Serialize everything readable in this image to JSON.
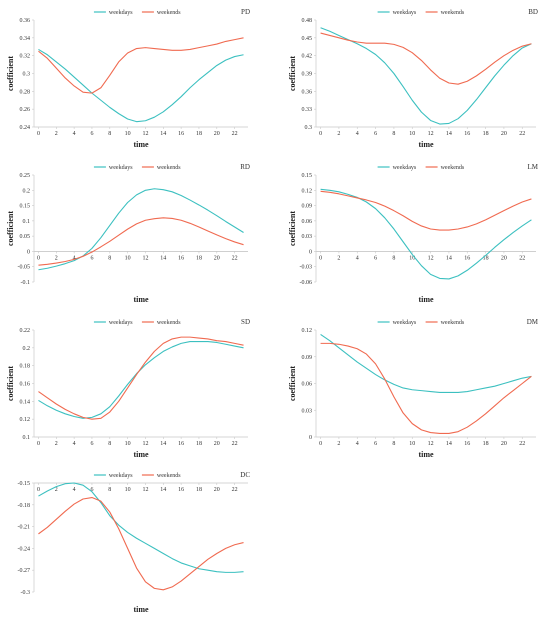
{
  "chart_data": [
    {
      "type": "line",
      "code": "PD",
      "xlabel": "time",
      "ylabel": "coefficient",
      "x": [
        0,
        1,
        2,
        3,
        4,
        5,
        6,
        7,
        8,
        9,
        10,
        11,
        12,
        13,
        14,
        15,
        16,
        17,
        18,
        19,
        20,
        21,
        22,
        23
      ],
      "x_ticks": [
        0,
        2,
        4,
        6,
        8,
        10,
        12,
        14,
        16,
        18,
        20,
        22
      ],
      "y_ticks": [
        0.24,
        0.26,
        0.28,
        0.3,
        0.32,
        0.34,
        0.36
      ],
      "ylim": [
        0.24,
        0.36
      ],
      "legend": "top",
      "series": [
        {
          "name": "weekdays",
          "color": "#3cc0c0",
          "values": [
            0.327,
            0.321,
            0.313,
            0.305,
            0.296,
            0.287,
            0.278,
            0.27,
            0.262,
            0.255,
            0.249,
            0.246,
            0.247,
            0.251,
            0.257,
            0.265,
            0.274,
            0.284,
            0.293,
            0.301,
            0.309,
            0.315,
            0.319,
            0.321
          ]
        },
        {
          "name": "weekends",
          "color": "#f06a50",
          "values": [
            0.325,
            0.317,
            0.306,
            0.295,
            0.286,
            0.279,
            0.278,
            0.284,
            0.298,
            0.313,
            0.323,
            0.328,
            0.329,
            0.328,
            0.327,
            0.326,
            0.326,
            0.327,
            0.329,
            0.331,
            0.333,
            0.336,
            0.338,
            0.34
          ]
        }
      ]
    },
    {
      "type": "line",
      "code": "BD",
      "xlabel": "time",
      "ylabel": "coefficient",
      "x": [
        0,
        1,
        2,
        3,
        4,
        5,
        6,
        7,
        8,
        9,
        10,
        11,
        12,
        13,
        14,
        15,
        16,
        17,
        18,
        19,
        20,
        21,
        22,
        23
      ],
      "x_ticks": [
        0,
        2,
        4,
        6,
        8,
        10,
        12,
        14,
        16,
        18,
        20,
        22
      ],
      "y_ticks": [
        0.3,
        0.33,
        0.36,
        0.39,
        0.42,
        0.45,
        0.48
      ],
      "ylim": [
        0.3,
        0.48
      ],
      "legend": "top",
      "series": [
        {
          "name": "weekdays",
          "color": "#3cc0c0",
          "values": [
            0.467,
            0.461,
            0.454,
            0.447,
            0.44,
            0.432,
            0.422,
            0.408,
            0.39,
            0.368,
            0.345,
            0.325,
            0.311,
            0.305,
            0.306,
            0.314,
            0.328,
            0.346,
            0.366,
            0.386,
            0.404,
            0.42,
            0.433,
            0.44
          ]
        },
        {
          "name": "weekends",
          "color": "#f06a50",
          "values": [
            0.458,
            0.454,
            0.45,
            0.446,
            0.443,
            0.441,
            0.441,
            0.441,
            0.439,
            0.434,
            0.425,
            0.412,
            0.396,
            0.382,
            0.374,
            0.372,
            0.377,
            0.386,
            0.397,
            0.409,
            0.42,
            0.429,
            0.436,
            0.44
          ]
        }
      ]
    },
    {
      "type": "line",
      "code": "RD",
      "xlabel": "time",
      "ylabel": "coefficient",
      "x": [
        0,
        1,
        2,
        3,
        4,
        5,
        6,
        7,
        8,
        9,
        10,
        11,
        12,
        13,
        14,
        15,
        16,
        17,
        18,
        19,
        20,
        21,
        22,
        23
      ],
      "x_ticks": [
        0,
        2,
        4,
        6,
        8,
        10,
        12,
        14,
        16,
        18,
        20,
        22
      ],
      "y_ticks": [
        -0.1,
        -0.05,
        0,
        0.05,
        0.1,
        0.15,
        0.2,
        0.25
      ],
      "ylim": [
        -0.1,
        0.25
      ],
      "legend": "top",
      "series": [
        {
          "name": "weekdays",
          "color": "#3cc0c0",
          "values": [
            -0.06,
            -0.055,
            -0.048,
            -0.04,
            -0.03,
            -0.015,
            0.01,
            0.045,
            0.085,
            0.125,
            0.16,
            0.185,
            0.2,
            0.205,
            0.202,
            0.195,
            0.183,
            0.168,
            0.152,
            0.135,
            0.117,
            0.098,
            0.08,
            0.062
          ]
        },
        {
          "name": "weekends",
          "color": "#f06a50",
          "values": [
            -0.045,
            -0.042,
            -0.038,
            -0.033,
            -0.026,
            -0.016,
            -0.002,
            0.015,
            0.033,
            0.053,
            0.073,
            0.09,
            0.102,
            0.107,
            0.11,
            0.108,
            0.102,
            0.092,
            0.08,
            0.067,
            0.054,
            0.042,
            0.031,
            0.022
          ]
        }
      ]
    },
    {
      "type": "line",
      "code": "LM",
      "xlabel": "time",
      "ylabel": "coefficient",
      "x": [
        0,
        1,
        2,
        3,
        4,
        5,
        6,
        7,
        8,
        9,
        10,
        11,
        12,
        13,
        14,
        15,
        16,
        17,
        18,
        19,
        20,
        21,
        22,
        23
      ],
      "x_ticks": [
        0,
        2,
        4,
        6,
        8,
        10,
        12,
        14,
        16,
        18,
        20,
        22
      ],
      "y_ticks": [
        -0.06,
        -0.03,
        0,
        0.03,
        0.06,
        0.09,
        0.12,
        0.15
      ],
      "ylim": [
        -0.06,
        0.15
      ],
      "legend": "top",
      "series": [
        {
          "name": "weekdays",
          "color": "#3cc0c0",
          "values": [
            0.122,
            0.12,
            0.117,
            0.112,
            0.106,
            0.097,
            0.084,
            0.066,
            0.044,
            0.019,
            -0.006,
            -0.028,
            -0.045,
            -0.053,
            -0.054,
            -0.048,
            -0.037,
            -0.023,
            -0.008,
            0.008,
            0.023,
            0.037,
            0.05,
            0.062
          ]
        },
        {
          "name": "weekends",
          "color": "#f06a50",
          "values": [
            0.118,
            0.116,
            0.113,
            0.109,
            0.105,
            0.101,
            0.096,
            0.089,
            0.08,
            0.07,
            0.059,
            0.05,
            0.044,
            0.042,
            0.042,
            0.044,
            0.048,
            0.054,
            0.062,
            0.071,
            0.08,
            0.089,
            0.097,
            0.103
          ]
        }
      ]
    },
    {
      "type": "line",
      "code": "SD",
      "xlabel": "time",
      "ylabel": "coefficient",
      "x": [
        0,
        1,
        2,
        3,
        4,
        5,
        6,
        7,
        8,
        9,
        10,
        11,
        12,
        13,
        14,
        15,
        16,
        17,
        18,
        19,
        20,
        21,
        22,
        23
      ],
      "x_ticks": [
        0,
        2,
        4,
        6,
        8,
        10,
        12,
        14,
        16,
        18,
        20,
        22
      ],
      "y_ticks": [
        0.1,
        0.12,
        0.14,
        0.16,
        0.18,
        0.2,
        0.22
      ],
      "ylim": [
        0.1,
        0.22
      ],
      "legend": "top",
      "series": [
        {
          "name": "weekdays",
          "color": "#3cc0c0",
          "values": [
            0.141,
            0.135,
            0.13,
            0.126,
            0.123,
            0.121,
            0.122,
            0.126,
            0.134,
            0.146,
            0.159,
            0.171,
            0.181,
            0.189,
            0.196,
            0.201,
            0.205,
            0.207,
            0.207,
            0.207,
            0.206,
            0.204,
            0.202,
            0.2
          ]
        },
        {
          "name": "weekends",
          "color": "#f06a50",
          "values": [
            0.151,
            0.144,
            0.137,
            0.131,
            0.126,
            0.122,
            0.12,
            0.121,
            0.128,
            0.14,
            0.155,
            0.17,
            0.184,
            0.196,
            0.205,
            0.21,
            0.212,
            0.212,
            0.211,
            0.21,
            0.208,
            0.207,
            0.205,
            0.203
          ]
        }
      ]
    },
    {
      "type": "line",
      "code": "DM",
      "xlabel": "time",
      "ylabel": "coefficient",
      "x": [
        0,
        1,
        2,
        3,
        4,
        5,
        6,
        7,
        8,
        9,
        10,
        11,
        12,
        13,
        14,
        15,
        16,
        17,
        18,
        19,
        20,
        21,
        22,
        23
      ],
      "x_ticks": [
        0,
        2,
        4,
        6,
        8,
        10,
        12,
        14,
        16,
        18,
        20,
        22
      ],
      "y_ticks": [
        0,
        0.03,
        0.06,
        0.09,
        0.12
      ],
      "ylim": [
        0,
        0.12
      ],
      "legend": "top",
      "series": [
        {
          "name": "weekdays",
          "color": "#3cc0c0",
          "values": [
            0.115,
            0.108,
            0.1,
            0.092,
            0.084,
            0.077,
            0.07,
            0.064,
            0.059,
            0.055,
            0.053,
            0.052,
            0.051,
            0.05,
            0.05,
            0.05,
            0.051,
            0.053,
            0.055,
            0.057,
            0.06,
            0.063,
            0.066,
            0.068
          ]
        },
        {
          "name": "weekends",
          "color": "#f06a50",
          "values": [
            0.105,
            0.105,
            0.104,
            0.102,
            0.099,
            0.093,
            0.082,
            0.065,
            0.045,
            0.027,
            0.015,
            0.008,
            0.005,
            0.004,
            0.004,
            0.006,
            0.011,
            0.018,
            0.026,
            0.035,
            0.044,
            0.052,
            0.06,
            0.068
          ]
        }
      ]
    },
    {
      "type": "line",
      "code": "DC",
      "xlabel": "time",
      "ylabel": "",
      "x": [
        0,
        1,
        2,
        3,
        4,
        5,
        6,
        7,
        8,
        9,
        10,
        11,
        12,
        13,
        14,
        15,
        16,
        17,
        18,
        19,
        20,
        21,
        22,
        23
      ],
      "x_ticks": [
        0,
        2,
        4,
        6,
        8,
        10,
        12,
        14,
        16,
        18,
        20,
        22
      ],
      "y_ticks": [
        -0.3,
        -0.27,
        -0.24,
        -0.21,
        -0.18,
        -0.15
      ],
      "ylim": [
        -0.3,
        -0.15
      ],
      "legend": "top",
      "series": [
        {
          "name": "weekdays",
          "color": "#3cc0c0",
          "values": [
            -0.168,
            -0.161,
            -0.155,
            -0.151,
            -0.15,
            -0.153,
            -0.162,
            -0.177,
            -0.195,
            -0.208,
            -0.218,
            -0.226,
            -0.233,
            -0.24,
            -0.247,
            -0.254,
            -0.26,
            -0.264,
            -0.268,
            -0.27,
            -0.272,
            -0.273,
            -0.273,
            -0.272
          ]
        },
        {
          "name": "weekends",
          "color": "#f06a50",
          "values": [
            -0.22,
            -0.211,
            -0.2,
            -0.189,
            -0.179,
            -0.172,
            -0.17,
            -0.175,
            -0.19,
            -0.213,
            -0.24,
            -0.267,
            -0.286,
            -0.295,
            -0.297,
            -0.293,
            -0.285,
            -0.275,
            -0.265,
            -0.255,
            -0.247,
            -0.24,
            -0.235,
            -0.232
          ]
        }
      ]
    }
  ]
}
